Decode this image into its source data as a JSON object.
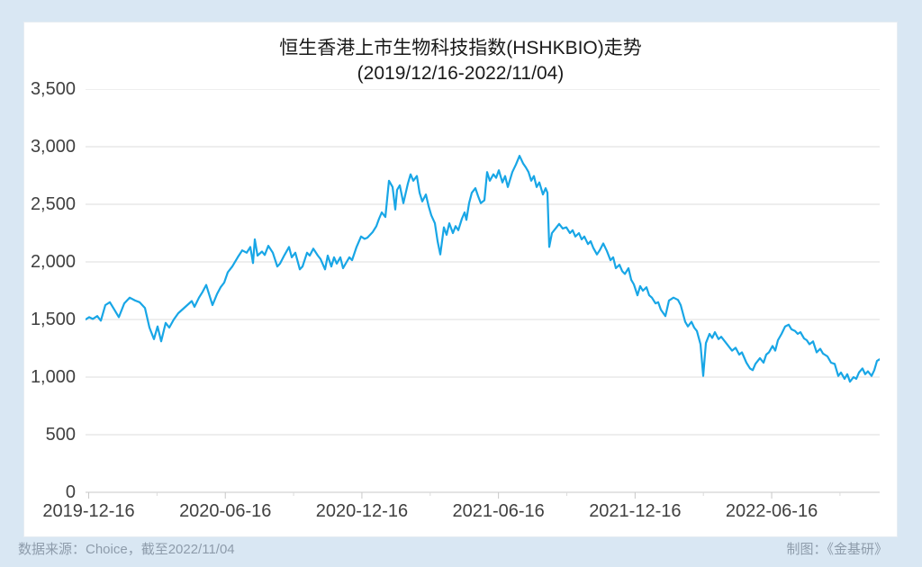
{
  "page": {
    "background_color": "#d9e7f3",
    "card_color": "#ffffff"
  },
  "footer": {
    "source": "数据来源：Choice，截至2022/11/04",
    "credit": "制图：《金基研》"
  },
  "chart_data": {
    "type": "line",
    "title_line1": "恒生香港上市生物科技指数(HSHKBIO)走势",
    "title_line2": "(2019/12/16-2022/11/04)",
    "series_name": "恒生香港上市生物科技指数(HSHKBIO)",
    "x_range": [
      "2019-12-16",
      "2022-11-04"
    ],
    "ylim": [
      0,
      3500
    ],
    "grid": true,
    "legend": "none",
    "line_color": "#18a6e6",
    "grid_color": "#dcdcdc",
    "axis_color": "#c8c8c8",
    "y_tick_labels": [
      "3,500",
      "3,000",
      "2,500",
      "2,000",
      "1,500",
      "1,000",
      "500",
      "0"
    ],
    "y_tick_values": [
      3500,
      3000,
      2500,
      2000,
      1500,
      1000,
      500,
      0
    ],
    "x_tick_labels": [
      "2019-12-16",
      "2020-06-16",
      "2020-12-16",
      "2021-06-16",
      "2021-12-16",
      "2022-06-16"
    ],
    "x_tick_positions": [
      0.004,
      0.176,
      0.348,
      0.52,
      0.692,
      0.864
    ],
    "x_minor_tick_positions": [
      0.09,
      0.262,
      0.434,
      0.606,
      0.778,
      0.95
    ],
    "points": [
      [
        0.0,
        1500
      ],
      [
        0.0045,
        1520
      ],
      [
        0.0091,
        1505
      ],
      [
        0.0147,
        1530
      ],
      [
        0.0193,
        1490
      ],
      [
        0.0249,
        1625
      ],
      [
        0.0306,
        1650
      ],
      [
        0.0363,
        1585
      ],
      [
        0.0419,
        1520
      ],
      [
        0.0488,
        1640
      ],
      [
        0.0556,
        1690
      ],
      [
        0.0624,
        1665
      ],
      [
        0.068,
        1650
      ],
      [
        0.0748,
        1600
      ],
      [
        0.0805,
        1430
      ],
      [
        0.0862,
        1330
      ],
      [
        0.0907,
        1440
      ],
      [
        0.0952,
        1310
      ],
      [
        0.1009,
        1470
      ],
      [
        0.1054,
        1430
      ],
      [
        0.1111,
        1500
      ],
      [
        0.1168,
        1555
      ],
      [
        0.1224,
        1590
      ],
      [
        0.1281,
        1625
      ],
      [
        0.1338,
        1660
      ],
      [
        0.1372,
        1610
      ],
      [
        0.1429,
        1690
      ],
      [
        0.1474,
        1740
      ],
      [
        0.1519,
        1800
      ],
      [
        0.1565,
        1700
      ],
      [
        0.1599,
        1625
      ],
      [
        0.1655,
        1720
      ],
      [
        0.1701,
        1780
      ],
      [
        0.1746,
        1820
      ],
      [
        0.1791,
        1910
      ],
      [
        0.1848,
        1960
      ],
      [
        0.1916,
        2040
      ],
      [
        0.1973,
        2100
      ],
      [
        0.2029,
        2080
      ],
      [
        0.2075,
        2130
      ],
      [
        0.2109,
        1990
      ],
      [
        0.2132,
        2195
      ],
      [
        0.2166,
        2055
      ],
      [
        0.2222,
        2090
      ],
      [
        0.2256,
        2060
      ],
      [
        0.2302,
        2140
      ],
      [
        0.2358,
        2080
      ],
      [
        0.2415,
        1960
      ],
      [
        0.2449,
        1985
      ],
      [
        0.2506,
        2060
      ],
      [
        0.2562,
        2130
      ],
      [
        0.2596,
        2040
      ],
      [
        0.2642,
        2080
      ],
      [
        0.2698,
        1935
      ],
      [
        0.2732,
        1960
      ],
      [
        0.2789,
        2080
      ],
      [
        0.2823,
        2055
      ],
      [
        0.2868,
        2115
      ],
      [
        0.2925,
        2055
      ],
      [
        0.2959,
        2025
      ],
      [
        0.3016,
        1935
      ],
      [
        0.305,
        2055
      ],
      [
        0.3095,
        1960
      ],
      [
        0.3129,
        2040
      ],
      [
        0.3163,
        1985
      ],
      [
        0.3209,
        2040
      ],
      [
        0.3243,
        1945
      ],
      [
        0.3288,
        2000
      ],
      [
        0.3322,
        2040
      ],
      [
        0.3356,
        2015
      ],
      [
        0.3413,
        2130
      ],
      [
        0.3469,
        2220
      ],
      [
        0.3515,
        2200
      ],
      [
        0.3549,
        2210
      ],
      [
        0.3617,
        2260
      ],
      [
        0.3662,
        2310
      ],
      [
        0.3696,
        2375
      ],
      [
        0.373,
        2430
      ],
      [
        0.3776,
        2390
      ],
      [
        0.3821,
        2705
      ],
      [
        0.3866,
        2650
      ],
      [
        0.39,
        2455
      ],
      [
        0.3923,
        2625
      ],
      [
        0.3957,
        2665
      ],
      [
        0.4002,
        2510
      ],
      [
        0.4059,
        2680
      ],
      [
        0.4093,
        2760
      ],
      [
        0.4127,
        2705
      ],
      [
        0.4172,
        2745
      ],
      [
        0.4206,
        2600
      ],
      [
        0.424,
        2525
      ],
      [
        0.4286,
        2585
      ],
      [
        0.432,
        2485
      ],
      [
        0.4354,
        2405
      ],
      [
        0.4399,
        2335
      ],
      [
        0.4433,
        2180
      ],
      [
        0.4467,
        2065
      ],
      [
        0.4512,
        2300
      ],
      [
        0.4546,
        2235
      ],
      [
        0.458,
        2335
      ],
      [
        0.4626,
        2250
      ],
      [
        0.466,
        2310
      ],
      [
        0.4694,
        2275
      ],
      [
        0.4739,
        2375
      ],
      [
        0.4773,
        2430
      ],
      [
        0.4796,
        2365
      ],
      [
        0.483,
        2510
      ],
      [
        0.4864,
        2600
      ],
      [
        0.4909,
        2640
      ],
      [
        0.4943,
        2570
      ],
      [
        0.4977,
        2510
      ],
      [
        0.5023,
        2535
      ],
      [
        0.5057,
        2780
      ],
      [
        0.5091,
        2705
      ],
      [
        0.5136,
        2760
      ],
      [
        0.517,
        2730
      ],
      [
        0.5204,
        2795
      ],
      [
        0.5249,
        2690
      ],
      [
        0.5283,
        2745
      ],
      [
        0.5317,
        2650
      ],
      [
        0.5374,
        2780
      ],
      [
        0.542,
        2845
      ],
      [
        0.5465,
        2920
      ],
      [
        0.551,
        2855
      ],
      [
        0.5544,
        2820
      ],
      [
        0.5578,
        2780
      ],
      [
        0.5612,
        2705
      ],
      [
        0.5646,
        2745
      ],
      [
        0.568,
        2650
      ],
      [
        0.5714,
        2690
      ],
      [
        0.576,
        2585
      ],
      [
        0.5794,
        2640
      ],
      [
        0.5816,
        2600
      ],
      [
        0.5839,
        2130
      ],
      [
        0.5873,
        2250
      ],
      [
        0.5918,
        2290
      ],
      [
        0.5964,
        2330
      ],
      [
        0.6009,
        2290
      ],
      [
        0.6054,
        2300
      ],
      [
        0.61,
        2250
      ],
      [
        0.6134,
        2275
      ],
      [
        0.6168,
        2220
      ],
      [
        0.6213,
        2250
      ],
      [
        0.6247,
        2195
      ],
      [
        0.6281,
        2220
      ],
      [
        0.6327,
        2155
      ],
      [
        0.6361,
        2180
      ],
      [
        0.6395,
        2120
      ],
      [
        0.644,
        2065
      ],
      [
        0.6474,
        2100
      ],
      [
        0.6519,
        2160
      ],
      [
        0.6565,
        2095
      ],
      [
        0.661,
        2015
      ],
      [
        0.6644,
        2040
      ],
      [
        0.6678,
        1945
      ],
      [
        0.6723,
        1975
      ],
      [
        0.6757,
        1920
      ],
      [
        0.6791,
        1895
      ],
      [
        0.6837,
        1945
      ],
      [
        0.6871,
        1845
      ],
      [
        0.6905,
        1805
      ],
      [
        0.695,
        1710
      ],
      [
        0.6984,
        1790
      ],
      [
        0.7018,
        1750
      ],
      [
        0.7064,
        1780
      ],
      [
        0.7098,
        1710
      ],
      [
        0.7132,
        1690
      ],
      [
        0.7177,
        1640
      ],
      [
        0.7211,
        1650
      ],
      [
        0.7245,
        1585
      ],
      [
        0.7302,
        1530
      ],
      [
        0.7347,
        1665
      ],
      [
        0.7404,
        1690
      ],
      [
        0.746,
        1670
      ],
      [
        0.7494,
        1625
      ],
      [
        0.7551,
        1480
      ],
      [
        0.7585,
        1440
      ],
      [
        0.763,
        1480
      ],
      [
        0.7664,
        1430
      ],
      [
        0.7698,
        1400
      ],
      [
        0.7744,
        1285
      ],
      [
        0.7778,
        1010
      ],
      [
        0.7812,
        1295
      ],
      [
        0.7857,
        1375
      ],
      [
        0.7891,
        1340
      ],
      [
        0.7925,
        1390
      ],
      [
        0.7971,
        1330
      ],
      [
        0.8005,
        1350
      ],
      [
        0.805,
        1310
      ],
      [
        0.8095,
        1270
      ],
      [
        0.8141,
        1230
      ],
      [
        0.8186,
        1255
      ],
      [
        0.8231,
        1195
      ],
      [
        0.8265,
        1215
      ],
      [
        0.8322,
        1125
      ],
      [
        0.8367,
        1075
      ],
      [
        0.8401,
        1060
      ],
      [
        0.8435,
        1115
      ],
      [
        0.8492,
        1165
      ],
      [
        0.8537,
        1125
      ],
      [
        0.8571,
        1195
      ],
      [
        0.8605,
        1215
      ],
      [
        0.8651,
        1270
      ],
      [
        0.8685,
        1230
      ],
      [
        0.8719,
        1320
      ],
      [
        0.8764,
        1375
      ],
      [
        0.881,
        1440
      ],
      [
        0.8855,
        1455
      ],
      [
        0.8889,
        1415
      ],
      [
        0.8934,
        1400
      ],
      [
        0.8968,
        1375
      ],
      [
        0.9002,
        1390
      ],
      [
        0.9048,
        1335
      ],
      [
        0.9082,
        1320
      ],
      [
        0.9116,
        1285
      ],
      [
        0.9161,
        1310
      ],
      [
        0.9206,
        1215
      ],
      [
        0.9252,
        1245
      ],
      [
        0.9286,
        1205
      ],
      [
        0.9342,
        1180
      ],
      [
        0.9388,
        1125
      ],
      [
        0.9433,
        1115
      ],
      [
        0.9478,
        1010
      ],
      [
        0.9512,
        1040
      ],
      [
        0.9558,
        985
      ],
      [
        0.9592,
        1025
      ],
      [
        0.9626,
        960
      ],
      [
        0.9671,
        1000
      ],
      [
        0.9705,
        985
      ],
      [
        0.9739,
        1040
      ],
      [
        0.9784,
        1075
      ],
      [
        0.9818,
        1025
      ],
      [
        0.9852,
        1050
      ],
      [
        0.9898,
        1010
      ],
      [
        0.9932,
        1060
      ],
      [
        0.9966,
        1140
      ],
      [
        1.0,
        1155
      ]
    ]
  }
}
